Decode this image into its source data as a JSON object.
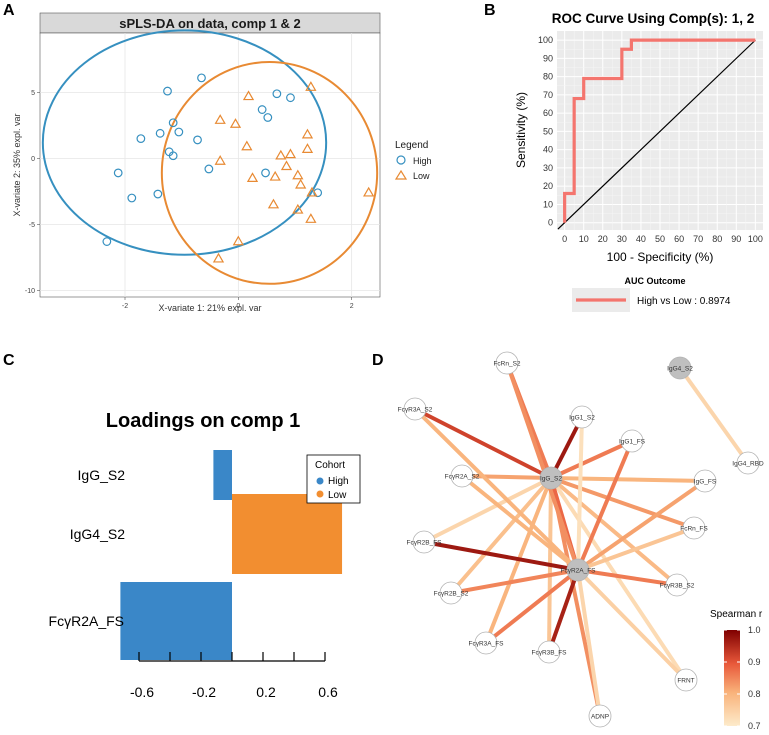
{
  "colors": {
    "high": "#3690c0",
    "low": "#e88a33",
    "high_bar": "#3a87c8",
    "low_bar": "#f28e30",
    "roc": "#f4756e",
    "panel_bg": "#ebebeb",
    "grid": "#ffffff",
    "strip_bg": "#d9d9d9"
  },
  "panel_labels": [
    "A",
    "B",
    "C",
    "D"
  ],
  "chart_data": [
    {
      "id": "A",
      "type": "scatter",
      "title": "sPLS-DA on data, comp 1 & 2",
      "xlabel": "X-variate 1: 21% expl. var",
      "ylabel": "X-variate 2: 35% expl. var",
      "xlim": [
        -3.5,
        2.5
      ],
      "ylim": [
        -10.5,
        9.5
      ],
      "xticks": [
        -2,
        0,
        2
      ],
      "xtick_labels": [
        "-2",
        "0",
        "2"
      ],
      "yticks": [
        -10,
        -5,
        0,
        5
      ],
      "ytick_labels": [
        "-10",
        "-5",
        "0",
        "5"
      ],
      "legend_title": "Legend",
      "series": [
        {
          "name": "High",
          "marker": "circle",
          "points": [
            [
              -0.65,
              6.1
            ],
            [
              -1.25,
              5.1
            ],
            [
              -1.05,
              2.0
            ],
            [
              -1.38,
              1.9
            ],
            [
              -1.72,
              1.5
            ],
            [
              -1.15,
              2.7
            ],
            [
              -0.72,
              1.4
            ],
            [
              -1.15,
              0.2
            ],
            [
              -1.22,
              0.5
            ],
            [
              -2.12,
              -1.1
            ],
            [
              -1.88,
              -3.0
            ],
            [
              -1.42,
              -2.7
            ],
            [
              -0.52,
              -0.8
            ],
            [
              -2.32,
              -6.3
            ],
            [
              0.68,
              4.9
            ],
            [
              0.92,
              4.6
            ],
            [
              0.42,
              3.7
            ],
            [
              0.52,
              3.1
            ],
            [
              0.48,
              -1.1
            ],
            [
              1.4,
              -2.6
            ]
          ]
        },
        {
          "name": "Low",
          "marker": "triangle",
          "points": [
            [
              1.28,
              5.4
            ],
            [
              0.18,
              4.7
            ],
            [
              -0.32,
              2.9
            ],
            [
              -0.05,
              2.6
            ],
            [
              0.15,
              0.9
            ],
            [
              1.22,
              1.8
            ],
            [
              0.75,
              0.2
            ],
            [
              0.92,
              0.3
            ],
            [
              1.22,
              0.7
            ],
            [
              -0.32,
              -0.2
            ],
            [
              0.25,
              -1.5
            ],
            [
              0.85,
              -0.6
            ],
            [
              0.65,
              -1.4
            ],
            [
              1.1,
              -2.0
            ],
            [
              1.3,
              -2.6
            ],
            [
              0.62,
              -3.5
            ],
            [
              1.05,
              -3.9
            ],
            [
              1.28,
              -4.6
            ],
            [
              0.0,
              -6.3
            ],
            [
              -0.35,
              -7.6
            ],
            [
              2.3,
              -2.6
            ],
            [
              1.05,
              -1.3
            ]
          ]
        }
      ]
    },
    {
      "id": "B",
      "type": "line",
      "title": "ROC Curve Using Comp(s): 1, 2",
      "xlabel": "100 - Specificity (%)",
      "ylabel": "Sensitivity (%)",
      "xlim": [
        -4,
        104
      ],
      "ylim": [
        -4,
        105
      ],
      "ticks": [
        0,
        10,
        20,
        30,
        40,
        50,
        60,
        70,
        80,
        90,
        100
      ],
      "tick_labels": [
        "0",
        "10",
        "20",
        "30",
        "40",
        "50",
        "60",
        "70",
        "80",
        "90",
        "100"
      ],
      "series": [
        {
          "name": "High vs Low : 0.8974",
          "x": [
            0,
            0,
            5,
            5,
            10,
            10,
            30,
            30,
            35,
            35,
            100
          ],
          "y": [
            0,
            16,
            16,
            68,
            68,
            79,
            79,
            95,
            95,
            100,
            100
          ]
        }
      ],
      "reference_line": [
        [
          0,
          0
        ],
        [
          100,
          100
        ]
      ],
      "legend_title": "AUC Outcome",
      "legend_label": "High vs Low : 0.8974"
    },
    {
      "id": "C",
      "type": "bar",
      "orientation": "horizontal",
      "title": "Loadings on comp 1",
      "categories": [
        "IgG_S2",
        "IgG4_S2",
        "FcγR2A_FS"
      ],
      "values": [
        -0.12,
        0.71,
        -0.72
      ],
      "cohort": [
        "High",
        "Low",
        "High"
      ],
      "xlim": [
        -0.8,
        0.8
      ],
      "xticks": [
        -0.6,
        -0.4,
        -0.2,
        0.0,
        0.2,
        0.4,
        0.6
      ],
      "xtick_labels": [
        "-0.6",
        "-0.2",
        "0.2",
        "0.6"
      ],
      "xtick_label_values": [
        -0.6,
        -0.2,
        0.2,
        0.6
      ],
      "legend_title": "Cohort",
      "legend": [
        "High",
        "Low"
      ]
    },
    {
      "id": "D",
      "type": "network",
      "legend_title": "Spearman r",
      "color_scale": {
        "min": 0.7,
        "max": 1.0,
        "low_color": "#fdebcb",
        "high_color": "#7f0000"
      },
      "scale_ticks": [
        0.7,
        0.8,
        0.9,
        1.0
      ],
      "scale_tick_labels": [
        "0.7",
        "0.8",
        "0.9",
        "1.0"
      ],
      "hubs": [
        "IgG_S2",
        "FcγR2A_FS",
        "IgG4_S2"
      ],
      "nodes": [
        "FcRn_S2",
        "IgG4_S2",
        "FcγR3A_S2",
        "IgG1_S2",
        "IgG1_FS",
        "IgG4_RBD",
        "FcγR2A_S2",
        "IgG_FS",
        "IgG_S2",
        "FcRn_FS",
        "FcγR2B_FS",
        "FcγR2A_FS",
        "FcγR3B_S2",
        "FcγR2B_S2",
        "FcγR3A_FS",
        "FcγR3B_FS",
        "FRNT",
        "ADNP"
      ],
      "edges": [
        [
          "IgG_S2",
          "FcRn_S2",
          0.86
        ],
        [
          "IgG_S2",
          "FcγR3A_S2",
          0.92
        ],
        [
          "IgG_S2",
          "IgG1_S2",
          0.97
        ],
        [
          "IgG_S2",
          "IgG1_FS",
          0.86
        ],
        [
          "IgG_S2",
          "IgG_FS",
          0.8
        ],
        [
          "IgG_S2",
          "FcγR2A_S2",
          0.82
        ],
        [
          "IgG_S2",
          "FcRn_FS",
          0.83
        ],
        [
          "IgG_S2",
          "FcγR2B_FS",
          0.74
        ],
        [
          "IgG_S2",
          "FcγR3B_S2",
          0.79
        ],
        [
          "IgG_S2",
          "FcγR2B_S2",
          0.78
        ],
        [
          "IgG_S2",
          "FcγR3A_FS",
          0.8
        ],
        [
          "IgG_S2",
          "FcγR3B_FS",
          0.77
        ],
        [
          "IgG_S2",
          "FRNT",
          0.73
        ],
        [
          "IgG_S2",
          "ADNP",
          0.84
        ],
        [
          "IgG_S2",
          "FcγR2A_FS",
          0.88
        ],
        [
          "FcγR2A_FS",
          "FcRn_S2",
          0.84
        ],
        [
          "FcγR2A_FS",
          "FcγR3A_S2",
          0.8
        ],
        [
          "FcγR2A_FS",
          "IgG1_S2",
          0.72
        ],
        [
          "FcγR2A_FS",
          "IgG1_FS",
          0.86
        ],
        [
          "FcγR2A_FS",
          "IgG_FS",
          0.82
        ],
        [
          "FcγR2A_FS",
          "FcγR2A_S2",
          0.8
        ],
        [
          "FcγR2A_FS",
          "FcRn_FS",
          0.77
        ],
        [
          "FcγR2A_FS",
          "FcγR2B_FS",
          0.97
        ],
        [
          "FcγR2A_FS",
          "FcγR3B_S2",
          0.86
        ],
        [
          "FcγR2A_FS",
          "FcγR2B_S2",
          0.85
        ],
        [
          "FcγR2A_FS",
          "FcγR3A_FS",
          0.86
        ],
        [
          "FcγR2A_FS",
          "FcγR3B_FS",
          0.96
        ],
        [
          "FcγR2A_FS",
          "FRNT",
          0.75
        ],
        [
          "FcγR2A_FS",
          "ADNP",
          0.74
        ],
        [
          "IgG4_S2",
          "IgG4_RBD",
          0.74
        ]
      ]
    }
  ]
}
